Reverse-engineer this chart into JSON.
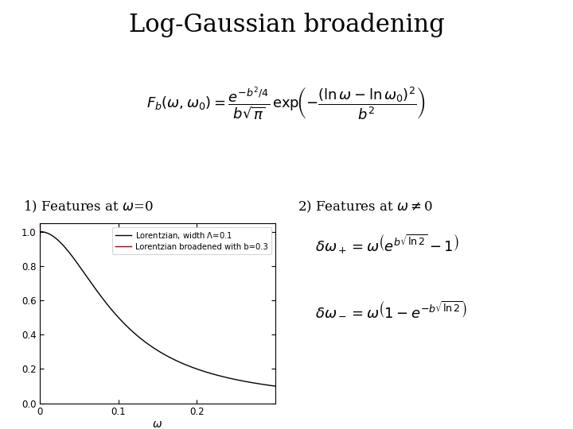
{
  "title": "Log-Gaussian broadening",
  "title_fontsize": 22,
  "background_color": "#ffffff",
  "label1": "1) Features at $\\omega$=0",
  "label2": "2) Features at $\\omega\\neq$0",
  "legend1": "Lorentzian, width $\\Lambda$=0.1",
  "legend2": "Lorentzian broadened with b=0.3",
  "lorentzian_color": "#000000",
  "broadened_color": "#aa0000",
  "line_width": 1.0,
  "Gamma": 0.1,
  "b": 0.3,
  "x_min": 0.0,
  "x_max": 0.3,
  "y_min": 0.0,
  "y_max": 1.05,
  "xlabel": "$\\omega$",
  "yticks": [
    0,
    0.2,
    0.4,
    0.6,
    0.8,
    1
  ],
  "xtick_vals": [
    0,
    0.1,
    0.2
  ],
  "xtick_labels": [
    "0",
    "0.1",
    "0.2"
  ]
}
